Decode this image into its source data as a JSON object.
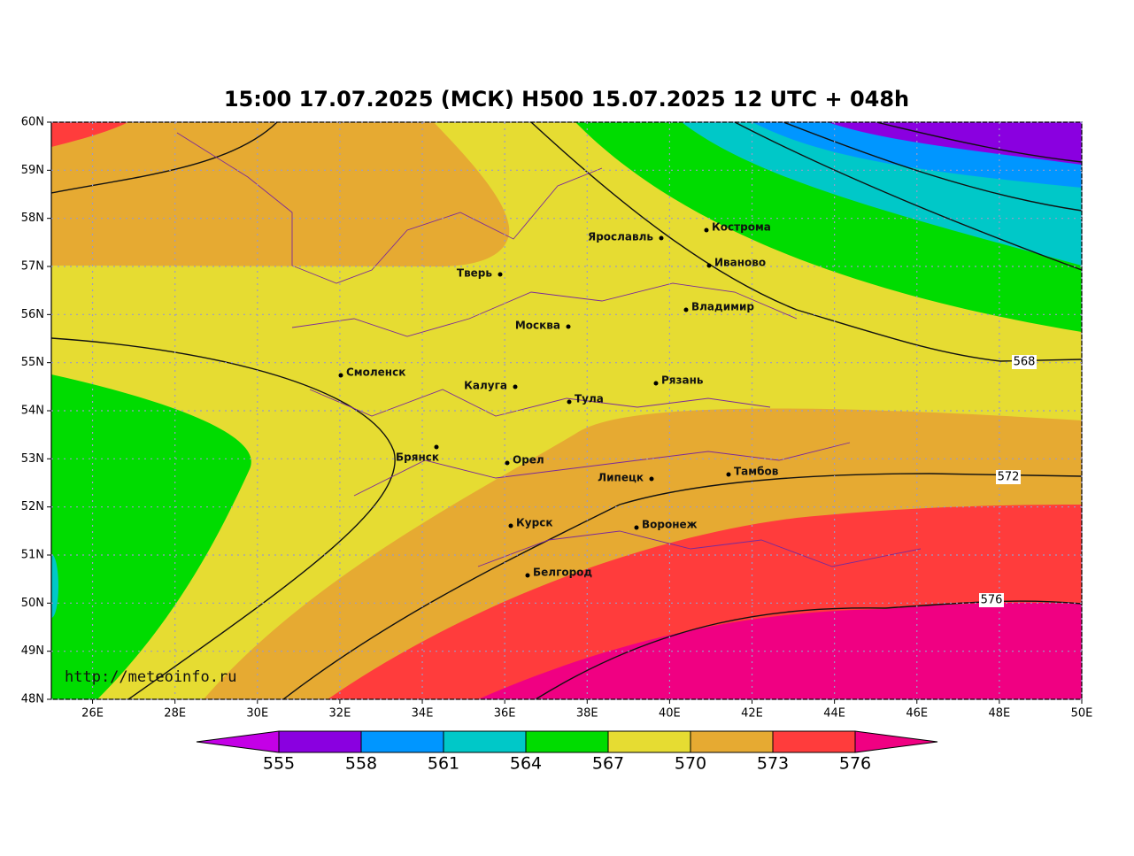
{
  "title": "15:00 17.07.2025 (МСК) H500  15.07.2025 12 UTC + 048h",
  "watermark": "http://meteoinfo.ru",
  "lon_ticks": [
    {
      "value": 26,
      "label": "26E"
    },
    {
      "value": 28,
      "label": "28E"
    },
    {
      "value": 30,
      "label": "30E"
    },
    {
      "value": 32,
      "label": "32E"
    },
    {
      "value": 34,
      "label": "34E"
    },
    {
      "value": 36,
      "label": "36E"
    },
    {
      "value": 38,
      "label": "38E"
    },
    {
      "value": 40,
      "label": "40E"
    },
    {
      "value": 42,
      "label": "42E"
    },
    {
      "value": 44,
      "label": "44E"
    },
    {
      "value": 46,
      "label": "46E"
    },
    {
      "value": 48,
      "label": "48E"
    },
    {
      "value": 50,
      "label": "50E"
    }
  ],
  "lat_ticks": [
    {
      "value": 48,
      "label": "48N"
    },
    {
      "value": 49,
      "label": "49N"
    },
    {
      "value": 50,
      "label": "50N"
    },
    {
      "value": 51,
      "label": "51N"
    },
    {
      "value": 52,
      "label": "52N"
    },
    {
      "value": 53,
      "label": "53N"
    },
    {
      "value": 54,
      "label": "54N"
    },
    {
      "value": 55,
      "label": "55N"
    },
    {
      "value": 56,
      "label": "56N"
    },
    {
      "value": 57,
      "label": "57N"
    },
    {
      "value": 58,
      "label": "58N"
    },
    {
      "value": 59,
      "label": "59N"
    },
    {
      "value": 60,
      "label": "60N"
    }
  ],
  "lon_range": [
    25,
    50
  ],
  "lat_range": [
    48,
    60
  ],
  "cities": [
    "Кострома",
    "Ярославль",
    "Иваново",
    "Тверь",
    "Владимир",
    "Москва",
    "Смоленск",
    "Калуга",
    "Рязань",
    "Тула",
    "Брянск",
    "Орел",
    "Липецк",
    "Тамбов",
    "Курск",
    "Воронеж",
    "Белгород"
  ],
  "contour_labels": [
    568,
    572,
    576
  ],
  "colorbar": {
    "levels": [
      555,
      558,
      561,
      564,
      567,
      570,
      573,
      576
    ],
    "colors": [
      "#c400e6",
      "#8a00e0",
      "#0096ff",
      "#00c8c8",
      "#00dc00",
      "#e6dc32",
      "#e6aa32",
      "#ff3c3c",
      "#f00082"
    ]
  }
}
